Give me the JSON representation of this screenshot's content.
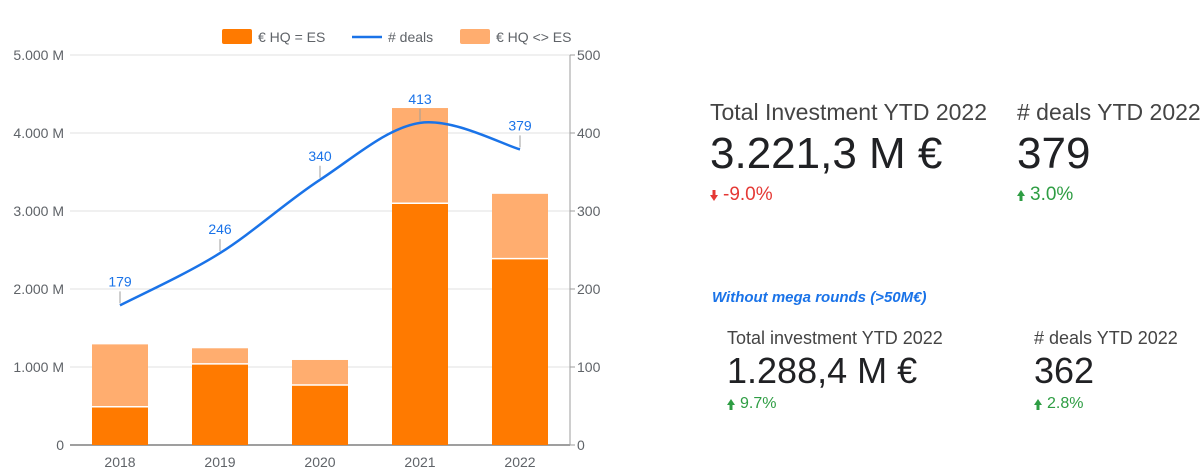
{
  "chart_data": {
    "type": "bar",
    "categories": [
      "2018",
      "2019",
      "2020",
      "2021",
      "2022"
    ],
    "series": [
      {
        "name": "€ HQ = ES",
        "kind": "bar",
        "axis": "left",
        "color": "#ff7a00",
        "values": [
          490,
          1040,
          770,
          3100,
          2390
        ]
      },
      {
        "name": "€ HQ <> ES",
        "kind": "bar",
        "axis": "left",
        "color": "#ffad6f",
        "values": [
          800,
          200,
          320,
          1220,
          830
        ]
      },
      {
        "name": "# deals",
        "kind": "line",
        "axis": "right",
        "color": "#1a73e8",
        "values": [
          179,
          246,
          340,
          413,
          379
        ]
      }
    ],
    "stacked": true,
    "ylim_left": [
      0,
      5000
    ],
    "ylim_right": [
      0,
      500
    ],
    "yticks_left": [
      "0",
      "1.000 M",
      "2.000 M",
      "3.000 M",
      "4.000 M",
      "5.000 M"
    ],
    "yticks_right": [
      "0",
      "100",
      "200",
      "300",
      "400",
      "500"
    ],
    "data_labels": [
      "179",
      "246",
      "340",
      "413",
      "379"
    ],
    "legend": [
      "€ HQ = ES",
      "# deals",
      "€ HQ <> ES"
    ],
    "legend_position": "top",
    "grid": true
  },
  "kpis": {
    "total": {
      "label": "Total Investment YTD 2022",
      "value": "3.221,3 M €",
      "delta": "-9.0%",
      "direction": "down"
    },
    "deals": {
      "label": "# deals YTD 2022",
      "value": "379",
      "delta": "3.0%",
      "direction": "up"
    }
  },
  "mega": {
    "title": "Without mega rounds (>50M€)",
    "total": {
      "label": "Total investment YTD 2022",
      "value": "1.288,4 M €",
      "delta": "9.7%",
      "direction": "up"
    },
    "deals": {
      "label": "# deals YTD 2022",
      "value": "362",
      "delta": "2.8%",
      "direction": "up"
    }
  },
  "icons": {
    "down": "arrow-down-icon",
    "up": "arrow-up-icon"
  }
}
